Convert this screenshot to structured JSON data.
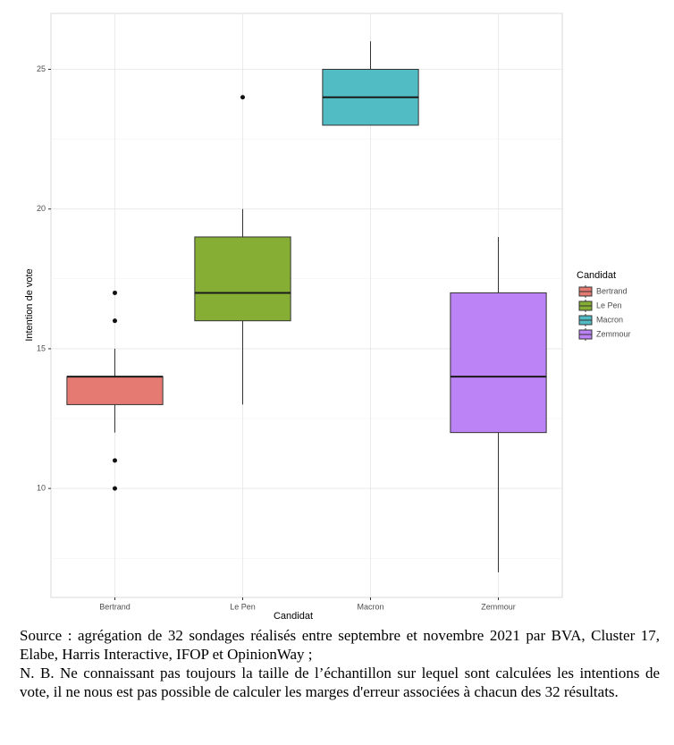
{
  "chart_data": {
    "type": "box",
    "x_label": "Candidat",
    "y_label": "Intention de vote",
    "legend_title": "Candidat",
    "categories": [
      "Bertrand",
      "Le Pen",
      "Macron",
      "Zemmour"
    ],
    "boxes": [
      {
        "name": "Bertrand",
        "color": "#e57a73",
        "whisker_low": 12,
        "q1": 13,
        "median": 14,
        "q3": 14,
        "whisker_high": 15,
        "outliers": [
          17,
          16,
          11,
          10
        ]
      },
      {
        "name": "Le Pen",
        "color": "#86ad34",
        "whisker_low": 13,
        "q1": 16,
        "median": 17,
        "q3": 19,
        "whisker_high": 20,
        "outliers": [
          24
        ]
      },
      {
        "name": "Macron",
        "color": "#52bcc5",
        "whisker_low": 23,
        "q1": 23,
        "median": 24,
        "q3": 25,
        "whisker_high": 26,
        "outliers": []
      },
      {
        "name": "Zemmour",
        "color": "#bc83f6",
        "whisker_low": 7,
        "q1": 12,
        "median": 14,
        "q3": 17,
        "whisker_high": 19,
        "outliers": []
      }
    ],
    "ylim": [
      6.1,
      27
    ],
    "yticks": [
      10,
      15,
      20,
      25
    ],
    "minor_yticks": [
      7.5,
      12.5,
      17.5,
      22.5
    ],
    "grid": true
  },
  "caption": {
    "source": "Source : agrégation de 32 sondages réalisés entre septembre et novembre 2021 par BVA, Cluster 17, Elabe, Harris Interactive, IFOP et OpinionWay ;",
    "note": "N. B. Ne connaissant pas toujours la taille de l’échantillon sur lequel sont calculées les intentions de vote, il ne nous est pas possible de calculer les marges d'erreur associées à chacun des 32 résultats."
  }
}
